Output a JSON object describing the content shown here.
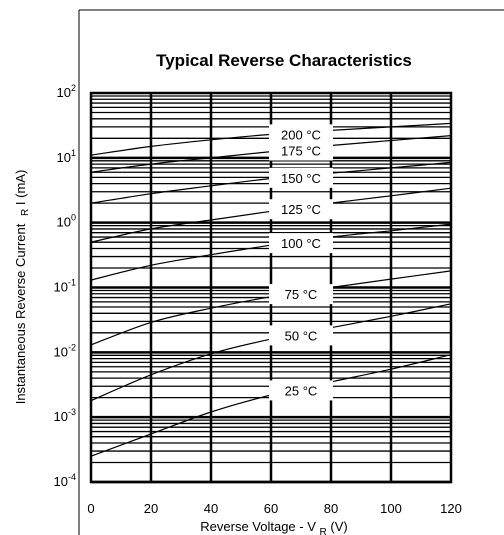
{
  "chart_data": {
    "type": "line",
    "title": "Typical Reverse Characteristics",
    "xlabel_main": "Reverse Voltage - V",
    "xlabel_sub": "R",
    "xlabel_unit": "(V)",
    "ylabel": "Instantaneous Reverse Current",
    "ylabel_symbol": "I",
    "ylabel_sub": "R",
    "ylabel_unit": "(mA)",
    "yscale": "log",
    "xlim": [
      0,
      120
    ],
    "ylim": [
      0.0001,
      100
    ],
    "grid": true,
    "x_ticks": [
      "0",
      "20",
      "40",
      "60",
      "80",
      "100",
      "120"
    ],
    "y_ticks": [
      {
        "base": "10",
        "exp": "2"
      },
      {
        "base": "10",
        "exp": "1"
      },
      {
        "base": "10",
        "exp": "0"
      },
      {
        "base": "10",
        "exp": "-1"
      },
      {
        "base": "10",
        "exp": "-2"
      },
      {
        "base": "10",
        "exp": "-3"
      },
      {
        "base": "10",
        "exp": "-4"
      }
    ],
    "series": [
      {
        "name": "25 °C",
        "x": [
          0,
          20,
          40,
          60,
          80,
          100,
          120
        ],
        "y": [
          0.00025,
          0.00055,
          0.0012,
          0.0022,
          0.0035,
          0.0055,
          0.0092
        ]
      },
      {
        "name": "50 °C",
        "x": [
          0,
          20,
          40,
          60,
          80,
          100,
          120
        ],
        "y": [
          0.0018,
          0.0045,
          0.0095,
          0.016,
          0.024,
          0.036,
          0.056
        ]
      },
      {
        "name": "75 °C",
        "x": [
          0,
          20,
          40,
          60,
          80,
          100,
          120
        ],
        "y": [
          0.013,
          0.029,
          0.048,
          0.072,
          0.1,
          0.135,
          0.18
        ]
      },
      {
        "name": "100 °C",
        "x": [
          0,
          20,
          40,
          60,
          80,
          100,
          120
        ],
        "y": [
          0.13,
          0.22,
          0.32,
          0.45,
          0.6,
          0.75,
          0.95
        ]
      },
      {
        "name": "125 °C",
        "x": [
          0,
          20,
          40,
          60,
          80,
          100,
          120
        ],
        "y": [
          0.5,
          0.8,
          1.1,
          1.5,
          2.0,
          2.6,
          3.4
        ]
      },
      {
        "name": "150 °C",
        "x": [
          0,
          20,
          40,
          60,
          80,
          100,
          120
        ],
        "y": [
          2.0,
          2.8,
          3.7,
          4.8,
          5.8,
          7.0,
          8.5
        ]
      },
      {
        "name": "175 °C",
        "x": [
          0,
          20,
          40,
          60,
          80,
          100,
          120
        ],
        "y": [
          6.0,
          8.0,
          10.0,
          12.5,
          15.5,
          18.5,
          22.0
        ]
      },
      {
        "name": "200 °C",
        "x": [
          0,
          20,
          40,
          60,
          80,
          100,
          120
        ],
        "y": [
          11.0,
          15.0,
          19.0,
          23.0,
          26.5,
          30.0,
          34.0
        ]
      }
    ],
    "colors": {
      "line": "#000000",
      "background": "#ffffff"
    }
  }
}
